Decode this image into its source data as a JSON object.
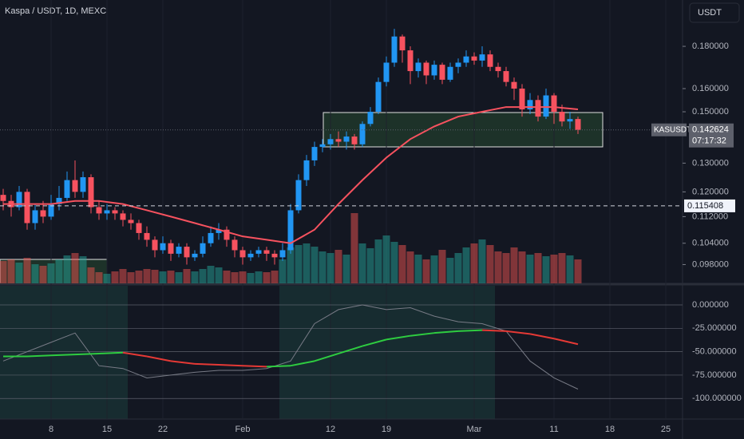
{
  "chart_data": {
    "type": "candlestick",
    "title": "Kaspa / USDT, 1D, MEXC",
    "currency_button": "USDT",
    "log_scale": true,
    "up_color": "#2196f3",
    "down_color": "#f7525f",
    "xlim": [
      0.6,
      86.1
    ],
    "xticks": [
      {
        "value": 7,
        "label": "8"
      },
      {
        "value": 14,
        "label": "15"
      },
      {
        "value": 21,
        "label": "22"
      },
      {
        "value": 31,
        "label": "Feb"
      },
      {
        "value": 42,
        "label": "12"
      },
      {
        "value": 49,
        "label": "19"
      },
      {
        "value": 60,
        "label": "Mar"
      },
      {
        "value": 70,
        "label": "11"
      },
      {
        "value": 77,
        "label": "18"
      },
      {
        "value": 84,
        "label": "25"
      }
    ],
    "ylim": [
      0.093,
      0.2048
    ],
    "yticks": [
      {
        "value": 0.18,
        "label": "0.180000"
      },
      {
        "value": 0.16,
        "label": "0.160000"
      },
      {
        "value": 0.15,
        "label": "0.150000"
      },
      {
        "value": 0.13,
        "label": "0.130000"
      },
      {
        "value": 0.12,
        "label": "0.120000"
      },
      {
        "value": 0.112,
        "label": "0.112000"
      },
      {
        "value": 0.104,
        "label": "0.104000"
      },
      {
        "value": 0.098,
        "label": "0.098000"
      }
    ],
    "symbol": "KASUSDT",
    "last_price": 0.142624,
    "countdown": "07:17:32",
    "level_line": 0.115408,
    "x": [
      1,
      2,
      3,
      4,
      5,
      6,
      7,
      8,
      9,
      10,
      11,
      12,
      13,
      14,
      15,
      16,
      17,
      18,
      19,
      20,
      21,
      22,
      23,
      24,
      25,
      26,
      27,
      28,
      29,
      30,
      31,
      32,
      33,
      34,
      35,
      36,
      37,
      38,
      39,
      40,
      41,
      42,
      43,
      44,
      45,
      46,
      47,
      48,
      49,
      50,
      51,
      52,
      53,
      54,
      55,
      56,
      57,
      58,
      59,
      60,
      61,
      62,
      63,
      64,
      65,
      66,
      67,
      68,
      69,
      70,
      71,
      72,
      73
    ],
    "candles": [
      [
        0.119,
        0.121,
        0.114,
        0.117
      ],
      [
        0.117,
        0.119,
        0.112,
        0.115
      ],
      [
        0.115,
        0.122,
        0.114,
        0.12
      ],
      [
        0.12,
        0.121,
        0.108,
        0.11
      ],
      [
        0.11,
        0.116,
        0.108,
        0.114
      ],
      [
        0.114,
        0.117,
        0.11,
        0.112
      ],
      [
        0.112,
        0.119,
        0.111,
        0.116
      ],
      [
        0.116,
        0.122,
        0.114,
        0.118
      ],
      [
        0.118,
        0.127,
        0.117,
        0.124
      ],
      [
        0.124,
        0.131,
        0.118,
        0.12
      ],
      [
        0.12,
        0.127,
        0.118,
        0.125
      ],
      [
        0.125,
        0.126,
        0.113,
        0.115
      ],
      [
        0.115,
        0.117,
        0.111,
        0.113
      ],
      [
        0.113,
        0.116,
        0.111,
        0.114
      ],
      [
        0.114,
        0.115,
        0.111,
        0.113
      ],
      [
        0.113,
        0.114,
        0.109,
        0.111
      ],
      [
        0.111,
        0.113,
        0.108,
        0.11
      ],
      [
        0.11,
        0.111,
        0.105,
        0.107
      ],
      [
        0.107,
        0.109,
        0.103,
        0.105
      ],
      [
        0.105,
        0.106,
        0.1,
        0.102
      ],
      [
        0.102,
        0.106,
        0.101,
        0.104
      ],
      [
        0.104,
        0.105,
        0.099,
        0.101
      ],
      [
        0.101,
        0.104,
        0.1,
        0.103
      ],
      [
        0.103,
        0.104,
        0.098,
        0.1
      ],
      [
        0.1,
        0.102,
        0.099,
        0.101
      ],
      [
        0.101,
        0.106,
        0.1,
        0.104
      ],
      [
        0.104,
        0.109,
        0.103,
        0.107
      ],
      [
        0.107,
        0.11,
        0.105,
        0.108
      ],
      [
        0.108,
        0.109,
        0.103,
        0.105
      ],
      [
        0.105,
        0.106,
        0.1,
        0.102
      ],
      [
        0.102,
        0.103,
        0.098,
        0.1
      ],
      [
        0.1,
        0.102,
        0.099,
        0.101
      ],
      [
        0.101,
        0.103,
        0.1,
        0.102
      ],
      [
        0.102,
        0.103,
        0.099,
        0.101
      ],
      [
        0.101,
        0.102,
        0.098,
        0.1
      ],
      [
        0.1,
        0.104,
        0.099,
        0.102
      ],
      [
        0.102,
        0.116,
        0.101,
        0.114
      ],
      [
        0.114,
        0.126,
        0.113,
        0.124
      ],
      [
        0.124,
        0.133,
        0.122,
        0.131
      ],
      [
        0.131,
        0.138,
        0.129,
        0.136
      ],
      [
        0.136,
        0.139,
        0.134,
        0.137
      ],
      [
        0.137,
        0.141,
        0.135,
        0.139
      ],
      [
        0.139,
        0.142,
        0.136,
        0.138
      ],
      [
        0.138,
        0.142,
        0.135,
        0.14
      ],
      [
        0.14,
        0.141,
        0.135,
        0.137
      ],
      [
        0.137,
        0.146,
        0.136,
        0.145
      ],
      [
        0.145,
        0.152,
        0.144,
        0.15
      ],
      [
        0.15,
        0.165,
        0.149,
        0.163
      ],
      [
        0.163,
        0.175,
        0.161,
        0.172
      ],
      [
        0.172,
        0.189,
        0.17,
        0.185
      ],
      [
        0.185,
        0.186,
        0.172,
        0.178
      ],
      [
        0.178,
        0.18,
        0.162,
        0.168
      ],
      [
        0.168,
        0.174,
        0.165,
        0.172
      ],
      [
        0.172,
        0.173,
        0.162,
        0.166
      ],
      [
        0.166,
        0.173,
        0.164,
        0.171
      ],
      [
        0.171,
        0.172,
        0.162,
        0.164
      ],
      [
        0.164,
        0.172,
        0.163,
        0.17
      ],
      [
        0.17,
        0.174,
        0.167,
        0.172
      ],
      [
        0.172,
        0.178,
        0.17,
        0.175
      ],
      [
        0.175,
        0.177,
        0.171,
        0.173
      ],
      [
        0.173,
        0.18,
        0.17,
        0.176
      ],
      [
        0.176,
        0.178,
        0.168,
        0.17
      ],
      [
        0.17,
        0.172,
        0.165,
        0.168
      ],
      [
        0.168,
        0.17,
        0.161,
        0.163
      ],
      [
        0.163,
        0.165,
        0.155,
        0.16
      ],
      [
        0.16,
        0.162,
        0.148,
        0.151
      ],
      [
        0.151,
        0.158,
        0.149,
        0.155
      ],
      [
        0.155,
        0.157,
        0.146,
        0.148
      ],
      [
        0.148,
        0.16,
        0.147,
        0.157
      ],
      [
        0.157,
        0.158,
        0.145,
        0.15
      ],
      [
        0.15,
        0.153,
        0.144,
        0.146
      ],
      [
        0.146,
        0.15,
        0.143,
        0.147
      ],
      [
        0.147,
        0.148,
        0.141,
        0.142624
      ]
    ],
    "volume_ylim": [
      0,
      100
    ],
    "volumes": [
      28,
      30,
      26,
      32,
      24,
      22,
      25,
      30,
      35,
      38,
      34,
      20,
      14,
      12,
      15,
      18,
      14,
      16,
      18,
      17,
      15,
      16,
      14,
      18,
      15,
      18,
      22,
      20,
      16,
      14,
      15,
      13,
      15,
      14,
      16,
      30,
      45,
      48,
      50,
      46,
      40,
      38,
      42,
      36,
      88,
      50,
      44,
      55,
      60,
      52,
      48,
      40,
      36,
      30,
      35,
      42,
      32,
      38,
      45,
      50,
      55,
      48,
      40,
      38,
      45,
      40,
      36,
      38,
      34,
      36,
      38,
      35,
      30
    ],
    "ma": {
      "x": [
        1,
        4,
        7,
        10,
        13,
        16,
        19,
        22,
        25,
        28,
        31,
        34,
        37,
        40,
        43,
        46,
        49,
        52,
        55,
        58,
        61,
        64,
        67,
        70,
        73
      ],
      "values": [
        0.116,
        0.116,
        0.116,
        0.117,
        0.117,
        0.116,
        0.114,
        0.112,
        0.11,
        0.108,
        0.106,
        0.105,
        0.104,
        0.108,
        0.116,
        0.124,
        0.132,
        0.139,
        0.144,
        0.148,
        0.15,
        0.152,
        0.152,
        0.152,
        0.151
      ],
      "color": "#f7525f"
    },
    "indicator": {
      "ylim": [
        -122,
        20.5
      ],
      "yticks": [
        {
          "value": 0,
          "label": "0.000000"
        },
        {
          "value": -25,
          "label": "-25.000000"
        },
        {
          "value": -50,
          "label": "-50.000000"
        },
        {
          "value": -75,
          "label": "-75.000000"
        },
        {
          "value": -100,
          "label": "-100.000000"
        }
      ],
      "x": [
        1,
        4,
        7,
        10,
        13,
        16,
        19,
        22,
        25,
        28,
        31,
        34,
        37,
        40,
        43,
        46,
        49,
        52,
        55,
        58,
        61,
        64,
        67,
        70,
        73
      ],
      "signal": {
        "values": [
          -55,
          -55,
          -54,
          -53,
          -52,
          -51,
          -55,
          -60,
          -63,
          -64,
          -65,
          -66,
          -65,
          -60,
          -52,
          -44,
          -37,
          -33,
          -30,
          -28,
          -27,
          -28,
          -31,
          -36,
          -42
        ],
        "color": "#2ecc40",
        "down_color": "#e53935"
      },
      "oscillator": {
        "values": [
          -60,
          -50,
          -40,
          -30,
          -65,
          -68,
          -78,
          -75,
          -72,
          -70,
          -70,
          -68,
          -60,
          -20,
          -5,
          0,
          -5,
          -3,
          -12,
          -18,
          -20,
          -28,
          -60,
          -78,
          -90
        ],
        "color": "#787b86"
      }
    }
  }
}
